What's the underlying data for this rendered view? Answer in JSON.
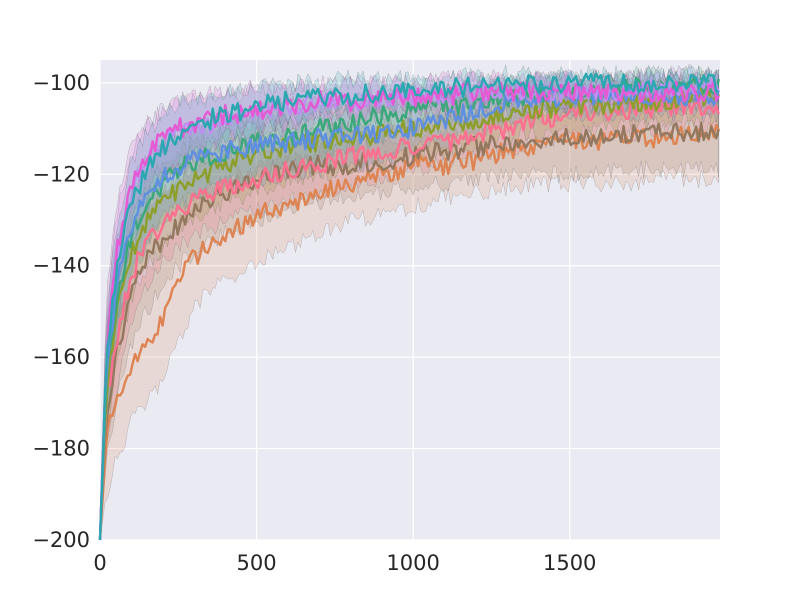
{
  "chart_data": {
    "type": "line",
    "title": "",
    "xlabel": "",
    "ylabel": "",
    "xlim": [
      0,
      1980
    ],
    "ylim": [
      -200,
      -95
    ],
    "x_ticks": [
      0,
      500,
      1000,
      1500
    ],
    "y_ticks": [
      -200,
      -180,
      -160,
      -140,
      -120,
      -100
    ],
    "x_tick_labels": [
      "0",
      "500",
      "1000",
      "1500"
    ],
    "y_tick_labels": [
      "−200",
      "−180",
      "−160",
      "−140",
      "−120",
      "−100"
    ],
    "grid": true,
    "legend": "none",
    "background": "#eaeaf2",
    "series": [
      {
        "color": "#dd8452",
        "x": [
          0,
          20,
          50,
          100,
          150,
          200,
          250,
          300,
          400,
          500,
          600,
          700,
          800,
          900,
          1000,
          1100,
          1200,
          1300,
          1400,
          1500,
          1600,
          1700,
          1800,
          1900,
          1980
        ],
        "y": [
          -200,
          -178,
          -170,
          -161,
          -157,
          -152,
          -143,
          -138,
          -133,
          -129,
          -127,
          -124,
          -122,
          -120,
          -118,
          -118,
          -117,
          -115,
          -114,
          -113,
          -113,
          -112,
          -112,
          -111,
          -111
        ],
        "lower": [
          -200,
          -190,
          -183,
          -174,
          -170,
          -165,
          -157,
          -149,
          -143,
          -139,
          -136,
          -133,
          -130,
          -129,
          -127,
          -125,
          -124,
          -123,
          -122,
          -122,
          -122,
          -122,
          -121,
          -121,
          -121
        ],
        "upper": [
          -200,
          -165,
          -152,
          -146,
          -142,
          -137,
          -130,
          -126,
          -121,
          -118,
          -117,
          -115,
          -114,
          -113,
          -112,
          -111,
          -109,
          -108,
          -107,
          -106,
          -105,
          -105,
          -104,
          -104,
          -104
        ]
      },
      {
        "color": "#937860",
        "x": [
          0,
          20,
          50,
          100,
          150,
          200,
          250,
          300,
          400,
          500,
          600,
          700,
          800,
          900,
          1000,
          1100,
          1200,
          1300,
          1400,
          1500,
          1600,
          1700,
          1800,
          1900,
          1980
        ],
        "y": [
          -200,
          -172,
          -160,
          -146,
          -139,
          -134,
          -131,
          -128,
          -124,
          -121,
          -119,
          -118,
          -118,
          -117,
          -116,
          -115,
          -114,
          -113,
          -113,
          -112,
          -112,
          -111,
          -111,
          -111,
          -111
        ],
        "lower": [
          -200,
          -183,
          -171,
          -157,
          -150,
          -144,
          -140,
          -137,
          -133,
          -130,
          -127,
          -126,
          -125,
          -124,
          -123,
          -122,
          -121,
          -120,
          -120,
          -120,
          -119,
          -119,
          -119,
          -119,
          -119
        ],
        "upper": [
          -200,
          -160,
          -148,
          -136,
          -129,
          -124,
          -121,
          -118,
          -115,
          -112,
          -111,
          -110,
          -110,
          -110,
          -109,
          -108,
          -107,
          -106,
          -106,
          -105,
          -105,
          -104,
          -104,
          -104,
          -104
        ]
      },
      {
        "color": "#ff6f8f",
        "x": [
          0,
          20,
          50,
          100,
          150,
          200,
          250,
          300,
          400,
          500,
          600,
          700,
          800,
          900,
          1000,
          1100,
          1200,
          1300,
          1400,
          1500,
          1600,
          1700,
          1800,
          1900,
          1980
        ],
        "y": [
          -200,
          -170,
          -157,
          -142,
          -135,
          -131,
          -128,
          -126,
          -123,
          -121,
          -119,
          -118,
          -116,
          -115,
          -114,
          -113,
          -111,
          -110,
          -108,
          -107,
          -106,
          -106,
          -105,
          -105,
          -105
        ],
        "lower": [
          -200,
          -180,
          -168,
          -152,
          -144,
          -139,
          -136,
          -134,
          -130,
          -128,
          -126,
          -124,
          -122,
          -121,
          -119,
          -118,
          -116,
          -115,
          -113,
          -112,
          -111,
          -111,
          -110,
          -110,
          -110
        ],
        "upper": [
          -200,
          -160,
          -147,
          -133,
          -126,
          -123,
          -121,
          -118,
          -116,
          -114,
          -113,
          -111,
          -110,
          -109,
          -108,
          -107,
          -106,
          -105,
          -104,
          -103,
          -102,
          -101,
          -101,
          -101,
          -101
        ]
      },
      {
        "color": "#8c9f2a",
        "x": [
          0,
          20,
          50,
          100,
          150,
          200,
          250,
          300,
          400,
          500,
          600,
          700,
          800,
          900,
          1000,
          1100,
          1200,
          1300,
          1400,
          1500,
          1600,
          1700,
          1800,
          1900,
          1980
        ],
        "y": [
          -200,
          -168,
          -152,
          -137,
          -130,
          -126,
          -123,
          -121,
          -118,
          -116,
          -114,
          -113,
          -112,
          -111,
          -110,
          -109,
          -108,
          -107,
          -106,
          -105,
          -105,
          -104,
          -104,
          -103,
          -103
        ],
        "lower": [
          -200,
          -178,
          -163,
          -147,
          -140,
          -136,
          -132,
          -130,
          -126,
          -124,
          -121,
          -120,
          -118,
          -117,
          -116,
          -115,
          -113,
          -112,
          -111,
          -110,
          -110,
          -109,
          -109,
          -108,
          -108
        ],
        "upper": [
          -200,
          -158,
          -142,
          -128,
          -121,
          -117,
          -115,
          -113,
          -111,
          -109,
          -108,
          -107,
          -106,
          -105,
          -104,
          -104,
          -103,
          -102,
          -101,
          -101,
          -100,
          -100,
          -100,
          -99,
          -99
        ]
      },
      {
        "color": "#3aa87b",
        "x": [
          0,
          20,
          50,
          100,
          150,
          200,
          250,
          300,
          400,
          500,
          600,
          700,
          800,
          900,
          1000,
          1100,
          1200,
          1300,
          1400,
          1500,
          1600,
          1700,
          1800,
          1900,
          1980
        ],
        "y": [
          -200,
          -165,
          -148,
          -133,
          -126,
          -122,
          -119,
          -117,
          -115,
          -113,
          -112,
          -110,
          -109,
          -107,
          -106,
          -105,
          -104,
          -103,
          -103,
          -102,
          -102,
          -101,
          -101,
          -101,
          -101
        ],
        "lower": [
          -200,
          -175,
          -159,
          -143,
          -135,
          -130,
          -127,
          -125,
          -122,
          -120,
          -118,
          -116,
          -114,
          -112,
          -110,
          -109,
          -108,
          -107,
          -106,
          -106,
          -105,
          -105,
          -105,
          -104,
          -104
        ],
        "upper": [
          -200,
          -155,
          -138,
          -124,
          -118,
          -114,
          -112,
          -110,
          -108,
          -106,
          -105,
          -104,
          -103,
          -102,
          -101,
          -101,
          -100,
          -100,
          -99,
          -99,
          -99,
          -98,
          -98,
          -98,
          -98
        ]
      },
      {
        "color": "#5f8fe0",
        "x": [
          0,
          20,
          50,
          100,
          150,
          200,
          250,
          300,
          400,
          500,
          600,
          700,
          800,
          900,
          1000,
          1100,
          1200,
          1300,
          1400,
          1500,
          1600,
          1700,
          1800,
          1900,
          1980
        ],
        "y": [
          -200,
          -163,
          -146,
          -131,
          -125,
          -121,
          -119,
          -117,
          -115,
          -114,
          -113,
          -112,
          -112,
          -111,
          -110,
          -108,
          -106,
          -104,
          -103,
          -103,
          -103,
          -103,
          -103,
          -103,
          -103
        ],
        "lower": [
          -200,
          -173,
          -157,
          -141,
          -134,
          -130,
          -127,
          -125,
          -122,
          -121,
          -120,
          -119,
          -118,
          -117,
          -115,
          -113,
          -111,
          -109,
          -108,
          -107,
          -107,
          -107,
          -107,
          -107,
          -107
        ],
        "upper": [
          -200,
          -153,
          -136,
          -122,
          -117,
          -113,
          -111,
          -110,
          -109,
          -108,
          -107,
          -106,
          -106,
          -105,
          -104,
          -103,
          -101,
          -100,
          -99,
          -99,
          -99,
          -99,
          -99,
          -99,
          -99
        ]
      },
      {
        "color": "#bd8ef0",
        "x": [
          0,
          20,
          50,
          100,
          150,
          200,
          250,
          300,
          400,
          500,
          600,
          700,
          800,
          900,
          1000,
          1100,
          1200,
          1300,
          1400,
          1500,
          1600,
          1700,
          1800,
          1900,
          1980
        ],
        "y": [
          -200,
          -160,
          -140,
          -124,
          -117,
          -113,
          -111,
          -110,
          -108,
          -106,
          -105,
          -104,
          -104,
          -103,
          -103,
          -103,
          -102,
          -102,
          -102,
          -102,
          -102,
          -102,
          -101,
          -101,
          -101
        ],
        "lower": [
          -200,
          -170,
          -150,
          -133,
          -125,
          -121,
          -119,
          -117,
          -114,
          -112,
          -110,
          -109,
          -108,
          -107,
          -107,
          -106,
          -106,
          -105,
          -105,
          -105,
          -105,
          -105,
          -104,
          -104,
          -104
        ],
        "upper": [
          -200,
          -150,
          -130,
          -116,
          -108,
          -106,
          -105,
          -104,
          -103,
          -102,
          -101,
          -101,
          -100,
          -100,
          -100,
          -100,
          -99,
          -99,
          -99,
          -99,
          -99,
          -99,
          -98,
          -98,
          -98
        ]
      },
      {
        "color": "#e55ad3",
        "x": [
          0,
          20,
          50,
          100,
          150,
          200,
          250,
          300,
          400,
          500,
          600,
          700,
          800,
          900,
          1000,
          1100,
          1200,
          1300,
          1400,
          1500,
          1600,
          1700,
          1800,
          1900,
          1980
        ],
        "y": [
          -200,
          -158,
          -138,
          -122,
          -116,
          -112,
          -110,
          -109,
          -107,
          -106,
          -105,
          -104,
          -104,
          -103,
          -103,
          -103,
          -102,
          -102,
          -102,
          -102,
          -102,
          -102,
          -102,
          -102,
          -102
        ],
        "lower": [
          -200,
          -168,
          -148,
          -130,
          -123,
          -119,
          -117,
          -115,
          -112,
          -110,
          -109,
          -108,
          -107,
          -106,
          -106,
          -106,
          -105,
          -105,
          -105,
          -105,
          -105,
          -105,
          -105,
          -105,
          -105
        ],
        "upper": [
          -200,
          -148,
          -128,
          -114,
          -109,
          -106,
          -104,
          -103,
          -102,
          -101,
          -101,
          -100,
          -100,
          -100,
          -100,
          -99,
          -99,
          -99,
          -99,
          -99,
          -99,
          -99,
          -99,
          -99,
          -99
        ]
      },
      {
        "color": "#2aa8b0",
        "x": [
          0,
          20,
          50,
          100,
          150,
          200,
          250,
          300,
          400,
          500,
          600,
          700,
          800,
          900,
          1000,
          1100,
          1200,
          1300,
          1400,
          1500,
          1600,
          1700,
          1800,
          1900,
          1980
        ],
        "y": [
          -200,
          -162,
          -142,
          -126,
          -119,
          -114,
          -111,
          -109,
          -107,
          -105,
          -104,
          -103,
          -103,
          -102,
          -102,
          -101,
          -101,
          -101,
          -100,
          -100,
          -100,
          -100,
          -100,
          -100,
          -100
        ],
        "lower": [
          -200,
          -172,
          -152,
          -135,
          -127,
          -121,
          -118,
          -116,
          -113,
          -110,
          -108,
          -107,
          -106,
          -105,
          -105,
          -104,
          -104,
          -104,
          -103,
          -103,
          -103,
          -103,
          -103,
          -103,
          -103
        ],
        "upper": [
          -200,
          -152,
          -132,
          -117,
          -111,
          -107,
          -104,
          -103,
          -102,
          -101,
          -100,
          -100,
          -99,
          -99,
          -99,
          -98,
          -98,
          -98,
          -98,
          -98,
          -98,
          -98,
          -98,
          -98,
          -98
        ]
      }
    ]
  }
}
